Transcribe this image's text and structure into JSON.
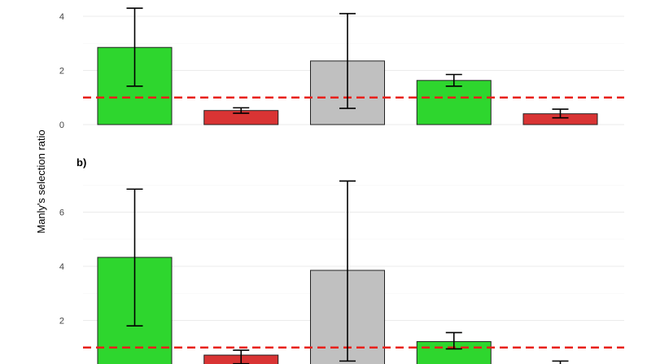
{
  "chart_data": {
    "ylabel": "Manly's selection ratio",
    "reference_line": {
      "value": 1,
      "color": "#e8201a",
      "style": "dashed"
    },
    "colors": {
      "selected": "#2ed62e",
      "avoided": "#d93434",
      "neutral": "#c0c0c0",
      "grid": "#ebebeb",
      "edge": "#222222"
    },
    "panels": [
      {
        "label": "",
        "type": "bar",
        "ylim": [
          0,
          4.3
        ],
        "yticks": [
          "0",
          "2",
          "4"
        ],
        "bars": [
          {
            "value": 2.85,
            "lower": 1.42,
            "upper": 4.3,
            "class": "selected"
          },
          {
            "value": 0.52,
            "lower": 0.42,
            "upper": 0.62,
            "class": "avoided"
          },
          {
            "value": 2.35,
            "lower": 0.6,
            "upper": 4.1,
            "class": "neutral"
          },
          {
            "value": 1.63,
            "lower": 1.42,
            "upper": 1.85,
            "class": "selected"
          },
          {
            "value": 0.4,
            "lower": 0.25,
            "upper": 0.57,
            "class": "avoided"
          }
        ]
      },
      {
        "label": "b)",
        "type": "bar",
        "ylim": [
          0,
          7.2
        ],
        "yticks": [
          "2",
          "4",
          "6"
        ],
        "bars": [
          {
            "value": 4.33,
            "lower": 1.8,
            "upper": 6.85,
            "class": "selected"
          },
          {
            "value": 0.72,
            "lower": 0.4,
            "upper": 0.9,
            "class": "avoided"
          },
          {
            "value": 3.85,
            "lower": 0.5,
            "upper": 7.15,
            "class": "neutral"
          },
          {
            "value": 1.22,
            "lower": 0.95,
            "upper": 1.55,
            "class": "selected"
          },
          {
            "value": 0.1,
            "lower": 0.0,
            "upper": 0.5,
            "class": "avoided"
          }
        ]
      }
    ]
  }
}
